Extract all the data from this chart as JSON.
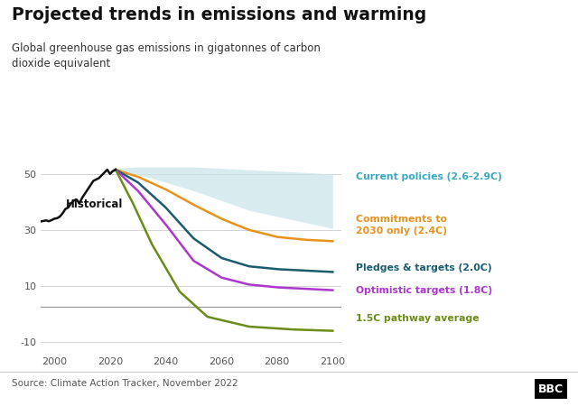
{
  "title": "Projected trends in emissions and warming",
  "subtitle": "Global greenhouse gas emissions in gigatonnes of carbon\ndioxide equivalent",
  "source": "Source: Climate Action Tracker, November 2022",
  "xlim": [
    1995,
    2103
  ],
  "ylim": [
    -14,
    57
  ],
  "yticks": [
    -10,
    10,
    30,
    50
  ],
  "xticks": [
    2000,
    2020,
    2040,
    2060,
    2080,
    2100
  ],
  "background_color": "#ffffff",
  "historical_color": "#111111",
  "current_policies_fill": "#cce6ea",
  "commitments_color": "#e8921e",
  "pledges_color": "#1a5c6e",
  "optimistic_color": "#aa38cc",
  "pathway_color": "#6b8c18",
  "zero_line_color": "#999999",
  "ann_current_policies_color": "#38a8c0",
  "ann_commitments_color": "#e8921e",
  "ann_pledges_color": "#1a5c6e",
  "ann_optimistic_color": "#aa38cc",
  "ann_pathway_color": "#6b8c18"
}
